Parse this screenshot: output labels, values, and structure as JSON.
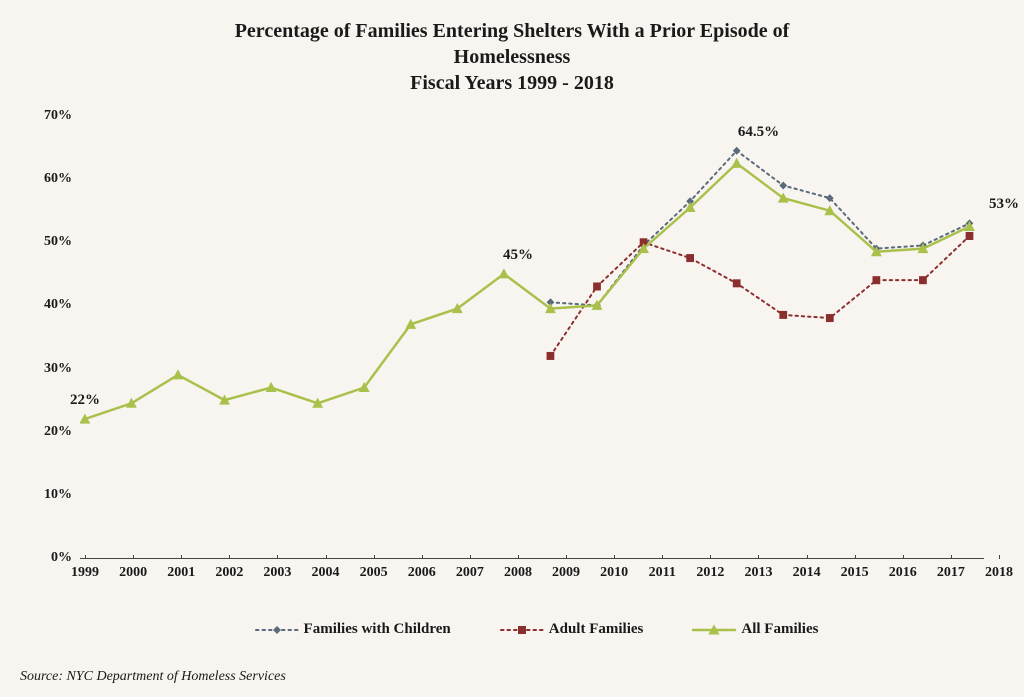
{
  "title_line1": "Percentage of Families Entering Shelters With a Prior Episode of",
  "title_line2": "Homelessness",
  "title_line3": "Fiscal Years 1999 - 2018",
  "title_fontsize": 20,
  "background_color": "#f8f5f0",
  "text_color": "#1a1a1a",
  "axis_color": "#444444",
  "chart": {
    "type": "line",
    "years": [
      1999,
      2000,
      2001,
      2002,
      2003,
      2004,
      2005,
      2006,
      2007,
      2008,
      2009,
      2010,
      2011,
      2012,
      2013,
      2014,
      2015,
      2016,
      2017,
      2018
    ],
    "ylim": [
      0,
      70
    ],
    "ytick_step": 10,
    "yticks": [
      "0%",
      "10%",
      "20%",
      "30%",
      "40%",
      "50%",
      "60%",
      "70%"
    ],
    "tick_fontsize": 14,
    "series": [
      {
        "name": "Families with Children",
        "color": "#5a6a7a",
        "marker": "diamond",
        "marker_size": 8,
        "line_style": "dotted",
        "line_width": 2,
        "data": [
          null,
          null,
          null,
          null,
          null,
          null,
          null,
          null,
          null,
          null,
          40.5,
          40,
          49.5,
          56.5,
          64.5,
          59,
          57,
          49,
          49.5,
          53
        ]
      },
      {
        "name": "Adult Families",
        "color": "#8b2e2e",
        "marker": "square",
        "marker_size": 8,
        "line_style": "dotted",
        "line_width": 2,
        "data": [
          null,
          null,
          null,
          null,
          null,
          null,
          null,
          null,
          null,
          null,
          32,
          43,
          50,
          47.5,
          43.5,
          38.5,
          38,
          44,
          44,
          51
        ]
      },
      {
        "name": "All Families",
        "color": "#a9c04a",
        "marker": "triangle",
        "marker_size": 9,
        "line_style": "solid",
        "line_width": 2.5,
        "data": [
          22,
          24.5,
          29,
          25,
          27,
          24.5,
          27,
          37,
          39.5,
          45,
          39.5,
          40,
          49,
          55.5,
          62.5,
          57,
          55,
          48.5,
          49,
          52.5
        ]
      }
    ],
    "data_labels": [
      {
        "year": 1999,
        "value": 22,
        "text": "22%",
        "dy": -10
      },
      {
        "year": 2008,
        "value": 45,
        "text": "45%",
        "dy": -10
      },
      {
        "year": 2013,
        "value": 64.5,
        "text": "64.5%",
        "dy": -10
      },
      {
        "year": 2018,
        "value": 53,
        "text": "53%",
        "dy": -10,
        "dx": 5
      }
    ],
    "data_label_fontsize": 15
  },
  "legend": {
    "fontsize": 15,
    "items": [
      {
        "label": "Families with Children",
        "series_index": 0
      },
      {
        "label": "Adult Families",
        "series_index": 1
      },
      {
        "label": "All Families",
        "series_index": 2
      }
    ]
  },
  "source": "Source: NYC Department of Homeless Services",
  "source_fontsize": 14
}
